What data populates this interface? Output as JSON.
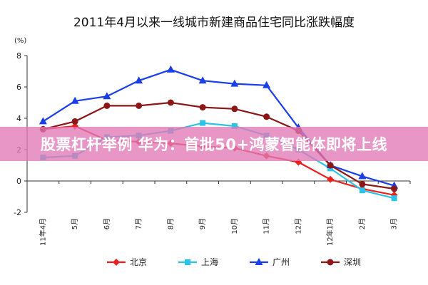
{
  "chart_data": {
    "type": "line",
    "title": "2011年4月以来一线城市新建商品住宅同比涨跌幅度",
    "unit_label": "(%)",
    "xlabel": "",
    "ylabel": "",
    "ylim": [
      -2,
      8
    ],
    "yticks": [
      -2,
      0,
      2,
      4,
      6,
      8
    ],
    "categories": [
      "11年4月",
      "5月",
      "6月",
      "7月",
      "8月",
      "9月",
      "10月",
      "11月",
      "12月",
      "12年1月",
      "2月",
      "3月"
    ],
    "grid": false,
    "legend_position": "bottom",
    "series": [
      {
        "name": "北京",
        "color": "#e8231f",
        "marker": "diamond",
        "values": [
          3.3,
          3.5,
          2.6,
          2.5,
          2.4,
          2.2,
          2.1,
          1.6,
          1.2,
          0.1,
          -0.5,
          -0.9
        ]
      },
      {
        "name": "上海",
        "color": "#2bc3e6",
        "marker": "square",
        "values": [
          1.5,
          1.6,
          2.8,
          2.9,
          3.2,
          3.7,
          3.5,
          2.9,
          2.0,
          0.8,
          -0.6,
          -1.1
        ]
      },
      {
        "name": "广州",
        "color": "#1a3ee8",
        "marker": "triangle",
        "values": [
          3.8,
          5.1,
          5.4,
          6.4,
          7.1,
          6.4,
          6.2,
          6.1,
          3.4,
          1.0,
          0.3,
          -0.3
        ]
      },
      {
        "name": "深圳",
        "color": "#8b1717",
        "marker": "circle",
        "values": [
          3.3,
          3.8,
          4.8,
          4.8,
          5.0,
          4.7,
          4.6,
          4.1,
          3.2,
          1.0,
          -0.2,
          -0.5
        ]
      }
    ]
  },
  "banner": {
    "text": "股票杠杆举例 华为：首批50+鸿蒙智能体即将上线"
  }
}
